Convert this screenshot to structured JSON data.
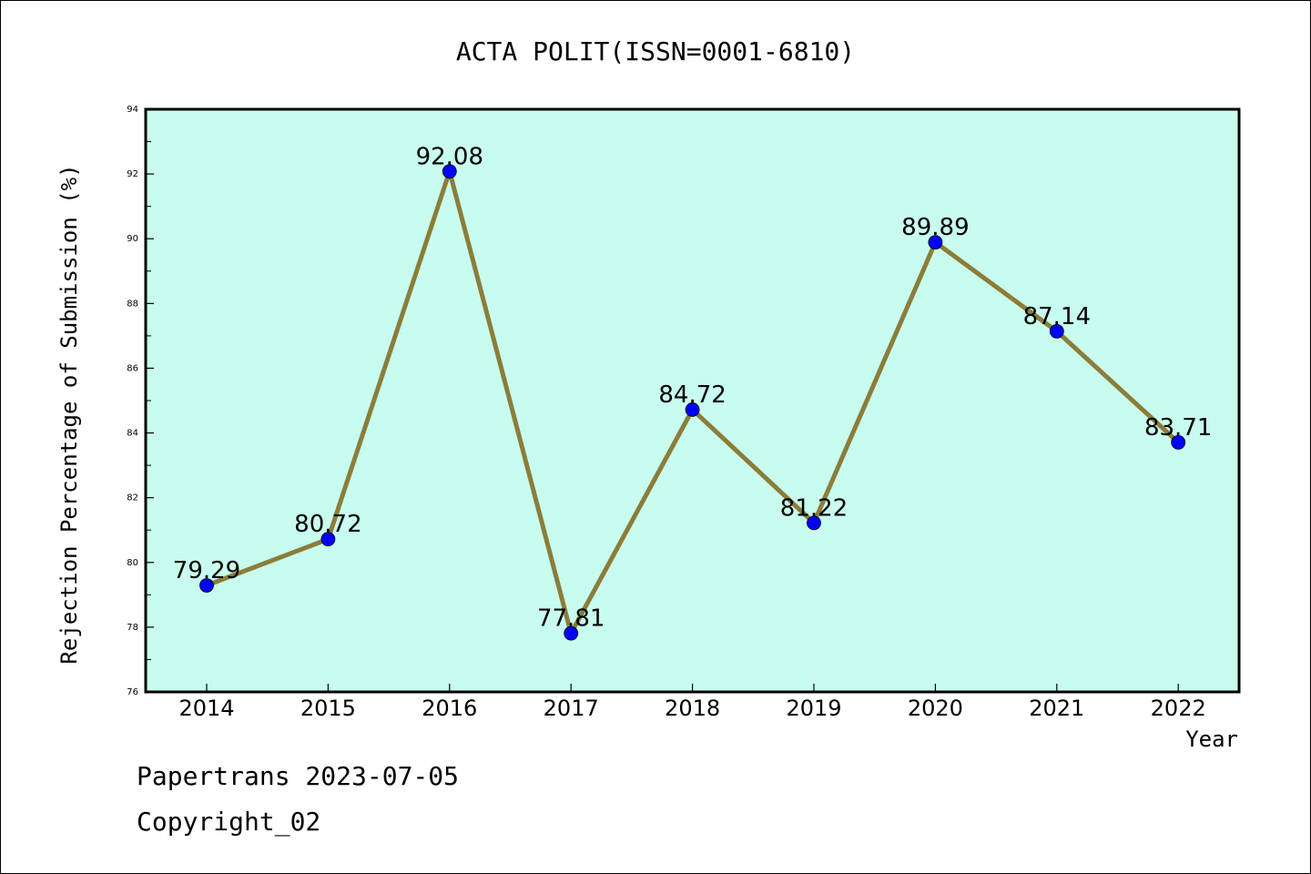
{
  "chart_data": {
    "type": "line",
    "title": "ACTA POLIT(ISSN=0001-6810)",
    "xlabel": "Year",
    "ylabel": "Rejection Percentage of Submission (%)",
    "categories": [
      "2014",
      "2015",
      "2016",
      "2017",
      "2018",
      "2019",
      "2020",
      "2021",
      "2022"
    ],
    "values": [
      79.29,
      80.72,
      92.08,
      77.81,
      84.72,
      81.22,
      89.89,
      87.14,
      83.71
    ],
    "data_labels": [
      "79.29",
      "80.72",
      "92.08",
      "77.81",
      "84.72",
      "81.22",
      "89.89",
      "87.14",
      "83.71"
    ],
    "ylim": [
      76,
      94
    ],
    "yticks": [
      "76",
      "78",
      "80",
      "82",
      "84",
      "86",
      "88",
      "90",
      "92",
      "94"
    ],
    "grid": false,
    "colors": {
      "plot_background": "#c8fcee",
      "line": "#8b7d3a",
      "marker": "#0000ff"
    }
  },
  "footer": {
    "line1": "Papertrans 2023-07-05",
    "line2": "Copyright_02"
  }
}
